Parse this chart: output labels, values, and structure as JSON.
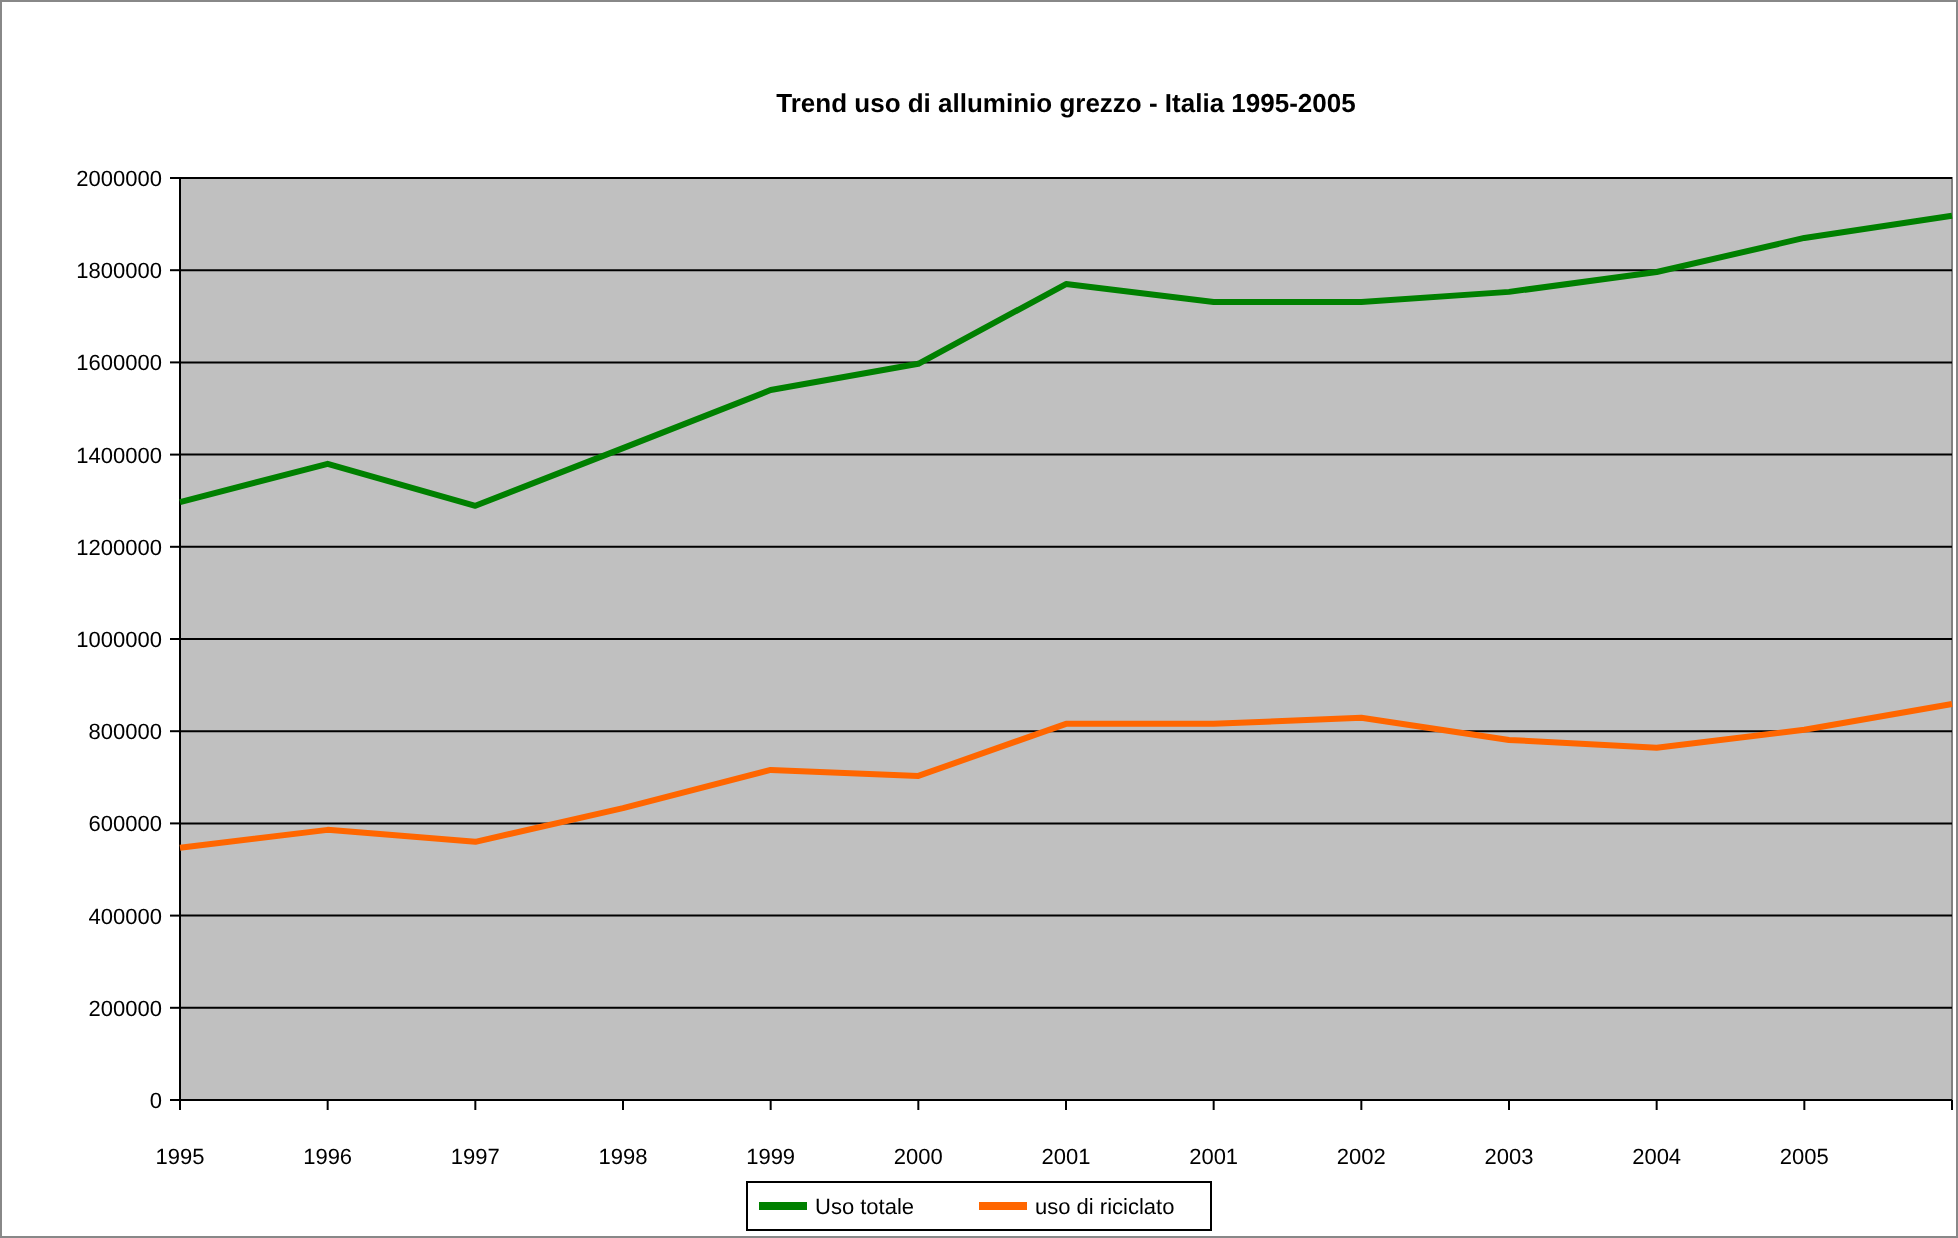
{
  "chart_data": {
    "type": "line",
    "title": "Trend uso di alluminio grezzo - Italia 1995-2005",
    "categories": [
      "1995",
      "1996",
      "1997",
      "1998",
      "1999",
      "2000",
      "2001",
      "2001",
      "2002",
      "2003",
      "2004",
      "2005",
      null
    ],
    "series": [
      {
        "name": "Uso totale",
        "color": "#008000",
        "values": [
          1297000,
          1380000,
          1289000,
          1414000,
          1540000,
          1597000,
          1770000,
          1731000,
          1731000,
          1753000,
          1796000,
          1870000,
          1918000
        ]
      },
      {
        "name": "uso di riciclato",
        "color": "#ff6600",
        "values": [
          547000,
          586000,
          560000,
          633000,
          716000,
          703000,
          816000,
          816000,
          829000,
          781000,
          764000,
          803000,
          859000
        ]
      }
    ],
    "ylim": [
      0,
      2000000
    ],
    "yticks": [
      0,
      200000,
      400000,
      600000,
      800000,
      1000000,
      1200000,
      1400000,
      1600000,
      1800000,
      2000000
    ],
    "grid": "y",
    "legend": "bottom",
    "marker": "none",
    "line_style": "solid"
  }
}
